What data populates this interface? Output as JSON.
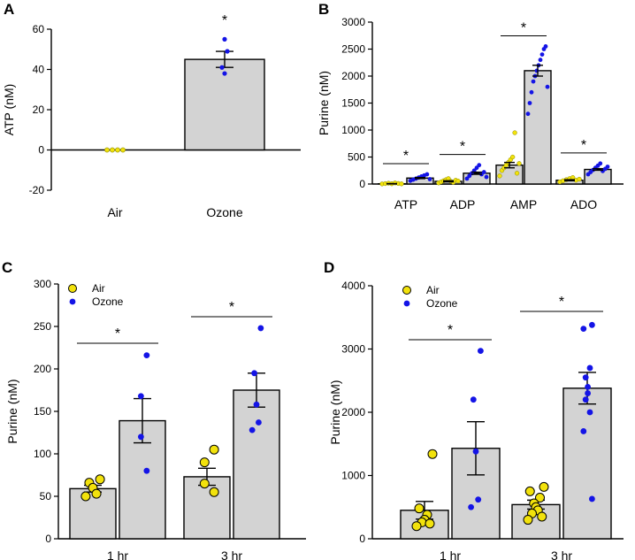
{
  "colors": {
    "air": "#f2e20c",
    "ozone": "#1414e6",
    "bar": "#d3d3d3"
  },
  "chart_data": [
    {
      "panel": "A",
      "type": "bar",
      "ylabel": "ATP (nM)",
      "ylim": [
        -20,
        60
      ],
      "yticks": [
        -20,
        0,
        20,
        40,
        60
      ],
      "categories": [
        "Air",
        "Ozone"
      ],
      "groups": [
        {
          "category": "Air",
          "series": "Air",
          "mean": 0,
          "sem": 0,
          "points": [
            0,
            0,
            0,
            0
          ]
        },
        {
          "category": "Ozone",
          "series": "Ozone",
          "mean": 45,
          "sem": 4,
          "points": [
            55,
            49,
            41,
            38
          ],
          "star": "*"
        }
      ]
    },
    {
      "panel": "B",
      "type": "bar",
      "ylabel": "Purine (nM)",
      "ylim": [
        0,
        3000
      ],
      "yticks": [
        0,
        500,
        1000,
        1500,
        2000,
        2500,
        3000
      ],
      "categories": [
        "ATP",
        "ADP",
        "AMP",
        "ADO"
      ],
      "series": [
        {
          "name": "Air",
          "values": [
            5,
            50,
            350,
            70
          ],
          "sem": [
            3,
            10,
            50,
            10
          ]
        },
        {
          "name": "Ozone",
          "values": [
            110,
            200,
            2100,
            270
          ],
          "sem": [
            10,
            20,
            100,
            15
          ]
        }
      ],
      "points": {
        "Air": [
          [
            2,
            8,
            15,
            5,
            20,
            10,
            3
          ],
          [
            20,
            40,
            60,
            80,
            100,
            50,
            30,
            70,
            55
          ],
          [
            150,
            250,
            300,
            350,
            400,
            450,
            500,
            950,
            200,
            380
          ],
          [
            40,
            60,
            80,
            100,
            120,
            70,
            90
          ]
        ],
        "Ozone": [
          [
            60,
            80,
            100,
            120,
            140,
            160,
            180,
            90
          ],
          [
            100,
            150,
            200,
            250,
            300,
            350,
            180,
            220,
            130
          ],
          [
            1300,
            1500,
            1700,
            1900,
            2000,
            2100,
            2200,
            2300,
            2400,
            2500,
            2550,
            1800
          ],
          [
            180,
            220,
            260,
            300,
            340,
            380,
            240,
            280,
            320
          ]
        ]
      },
      "significance": [
        "*",
        "*",
        "*",
        "*"
      ]
    },
    {
      "panel": "C",
      "type": "bar",
      "ylabel": "Purine (nM)",
      "ylim": [
        0,
        300
      ],
      "yticks": [
        0,
        50,
        100,
        150,
        200,
        250,
        300
      ],
      "categories": [
        "1 hr",
        "3 hr"
      ],
      "legend": [
        "Air",
        "Ozone"
      ],
      "series": [
        {
          "name": "Air",
          "values": [
            59,
            73
          ],
          "sem": [
            4,
            10
          ]
        },
        {
          "name": "Ozone",
          "values": [
            139,
            175
          ],
          "sem": [
            26,
            20
          ]
        }
      ],
      "points": {
        "Air": [
          [
            70,
            66,
            60,
            53,
            50
          ],
          [
            105,
            90,
            65,
            55
          ]
        ],
        "Ozone": [
          [
            216,
            168,
            120,
            80
          ],
          [
            248,
            195,
            158,
            137,
            128
          ]
        ]
      },
      "significance": [
        "*",
        "*"
      ]
    },
    {
      "panel": "D",
      "type": "bar",
      "ylabel": "Purine (nM)",
      "ylim": [
        0,
        4000
      ],
      "yticks": [
        0,
        1000,
        2000,
        3000,
        4000
      ],
      "categories": [
        "1 hr",
        "3 hr"
      ],
      "legend": [
        "Air",
        "Ozone"
      ],
      "series": [
        {
          "name": "Air",
          "values": [
            450,
            540
          ],
          "sem": [
            140,
            70
          ]
        },
        {
          "name": "Ozone",
          "values": [
            1430,
            2380
          ],
          "sem": [
            420,
            250
          ]
        }
      ],
      "points": {
        "Air": [
          [
            1340,
            480,
            380,
            300,
            260,
            240,
            200
          ],
          [
            820,
            750,
            650,
            560,
            500,
            450,
            400,
            350,
            300
          ]
        ],
        "Ozone": [
          [
            2970,
            2200,
            1380,
            620,
            500
          ],
          [
            3380,
            3320,
            2700,
            2550,
            2400,
            2300,
            2200,
            2000,
            1700,
            630
          ]
        ]
      },
      "significance": [
        "*",
        "*"
      ]
    }
  ]
}
